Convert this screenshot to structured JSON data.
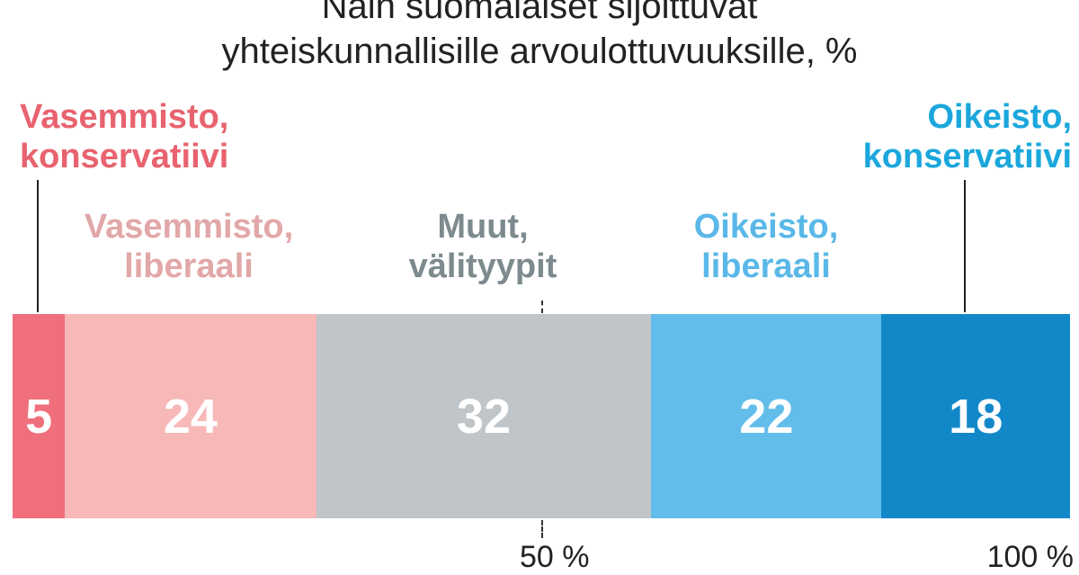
{
  "chart_data": {
    "type": "bar",
    "stacked": true,
    "orientation": "horizontal",
    "title": "Näin suomalaiset sijoittuvat yhteiskunnallisille arvoulottuvuuksille, %",
    "title_lines": [
      "Näin suomalaiset sijoittuvat",
      "yhteiskunnallisille arvoulottuvuuksille, %"
    ],
    "categories": [
      "Vasemmisto, konservatiivi",
      "Vasemmisto, liberaali",
      "Muut, välityypit",
      "Oikeisto, liberaali",
      "Oikeisto, konservatiivi"
    ],
    "values": [
      5,
      24,
      32,
      22,
      18
    ],
    "value_labels": [
      "5",
      "24",
      "32",
      "22",
      "18"
    ],
    "colors": [
      "#ef6f7c",
      "#f7b8b8",
      "#bfc5c8",
      "#63bdea",
      "#1388c9"
    ],
    "label_colors": [
      "#e8636f",
      "#e2a7a8",
      "#7d8a8e",
      "#5ab8e8",
      "#1ba7dc"
    ],
    "label_lines": [
      [
        "Vasemmisto,",
        "konservatiivi"
      ],
      [
        "Vasemmisto,",
        "liberaali"
      ],
      [
        "Muut,",
        "välityypit"
      ],
      [
        "Oikeisto,",
        "liberaali"
      ],
      [
        "Oikeisto,",
        "konservatiivi"
      ]
    ],
    "ticks": [
      "50 %",
      "100 %"
    ],
    "grid": false
  }
}
